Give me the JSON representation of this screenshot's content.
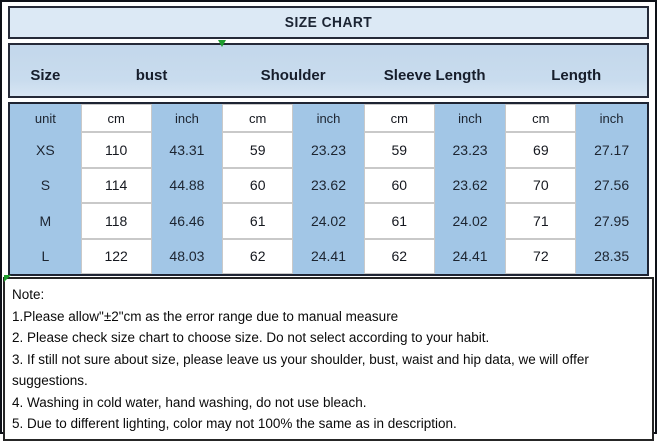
{
  "title": "SIZE CHART",
  "header": {
    "columns": [
      {
        "label": "Size",
        "span": 1
      },
      {
        "label": "bust",
        "span": 2
      },
      {
        "label": "Shoulder",
        "span": 2
      },
      {
        "label": "Sleeve Length",
        "span": 2
      },
      {
        "label": "Length",
        "span": 2
      }
    ]
  },
  "table": {
    "unit_row": [
      "unit",
      "cm",
      "inch",
      "cm",
      "inch",
      "cm",
      "inch",
      "cm",
      "inch"
    ],
    "rows": [
      {
        "size": "XS",
        "values": [
          "110",
          "43.31",
          "59",
          "23.23",
          "59",
          "23.23",
          "69",
          "27.17"
        ]
      },
      {
        "size": "S",
        "values": [
          "114",
          "44.88",
          "60",
          "23.62",
          "60",
          "23.62",
          "70",
          "27.56"
        ]
      },
      {
        "size": "M",
        "values": [
          "118",
          "46.46",
          "61",
          "24.02",
          "61",
          "24.02",
          "71",
          "27.95"
        ]
      },
      {
        "size": "L",
        "values": [
          "122",
          "48.03",
          "62",
          "24.41",
          "62",
          "24.41",
          "72",
          "28.35"
        ]
      }
    ]
  },
  "notes": {
    "heading": "Note:",
    "items": [
      "1.Please allow\"±2\"cm as the error range due to manual measure",
      "2. Please check size chart to choose size. Do not select according to your habit.",
      "3. If still not sure about size, please leave us your shoulder, bust, waist and hip data, we will offer suggestions.",
      "4. Washing in cold water, hand washing, do not use bleach.",
      "5. Due to different lighting, color may not 100% the same as in description."
    ]
  },
  "colors": {
    "title_bg": "#dce9f5",
    "header_bg": "#c9dcee",
    "cell_blue": "#a2c6e6",
    "cell_white": "#ffffff",
    "grid_gray": "#c9c9c9",
    "border_dark": "#1e2433",
    "text_dark": "#1c2430",
    "marker_green": "#1f9e2e"
  }
}
